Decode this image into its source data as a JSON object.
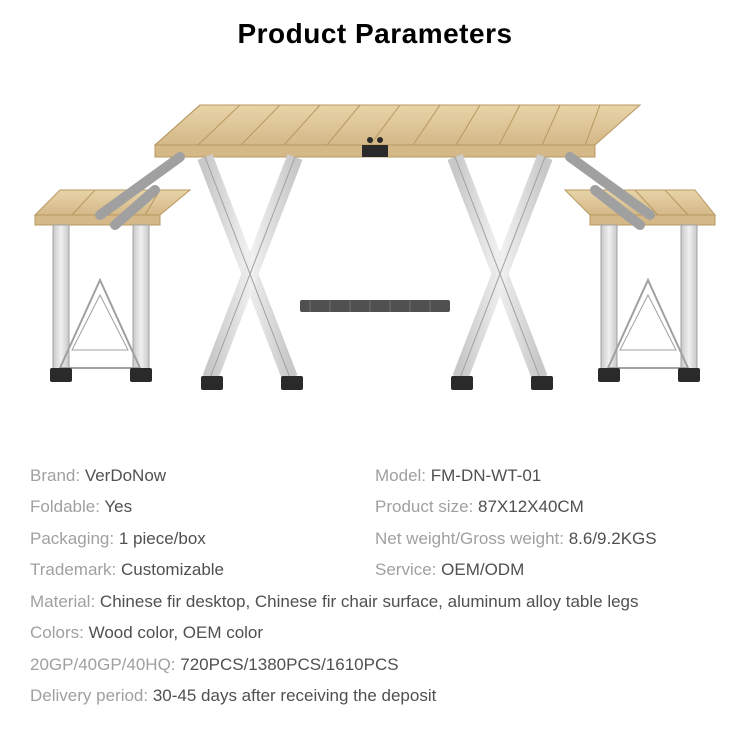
{
  "title": "Product Parameters",
  "image": {
    "wood_light": "#e8d4a8",
    "wood_mid": "#d4b888",
    "wood_dark": "#b89860",
    "metal_light": "#e8e8e8",
    "metal_mid": "#c8c8c8",
    "metal_dark": "#a0a0a0",
    "foot_color": "#2a2a2a",
    "plastic_dark": "#505050",
    "bg": "#ffffff"
  },
  "specs": {
    "rows": [
      {
        "left_label": "Brand: ",
        "left_value": "VerDoNow",
        "right_label": "Model: ",
        "right_value": "FM-DN-WT-01"
      },
      {
        "left_label": "Foldable: ",
        "left_value": "Yes",
        "right_label": "Product size: ",
        "right_value": "87X12X40CM"
      },
      {
        "left_label": "Packaging: ",
        "left_value": "1 piece/box",
        "right_label": "Net weight/Gross weight: ",
        "right_value": "8.6/9.2KGS"
      },
      {
        "left_label": "Trademark: ",
        "left_value": "Customizable",
        "right_label": "Service: ",
        "right_value": "OEM/ODM"
      }
    ],
    "full_rows": [
      {
        "label": "Material: ",
        "value": "Chinese fir desktop, Chinese fir chair surface, aluminum alloy table legs"
      },
      {
        "label": "Colors: ",
        "value": "Wood color, OEM color"
      },
      {
        "label": "20GP/40GP/40HQ: ",
        "value": "720PCS/1380PCS/1610PCS"
      },
      {
        "label": "Delivery period: ",
        "value": "30-45 days after receiving the deposit"
      }
    ]
  },
  "style": {
    "title_color": "#000000",
    "title_fontsize": 28,
    "label_color": "#a0a0a0",
    "value_color": "#505050",
    "body_fontsize": 17,
    "line_height": 1.85,
    "background": "#ffffff"
  }
}
